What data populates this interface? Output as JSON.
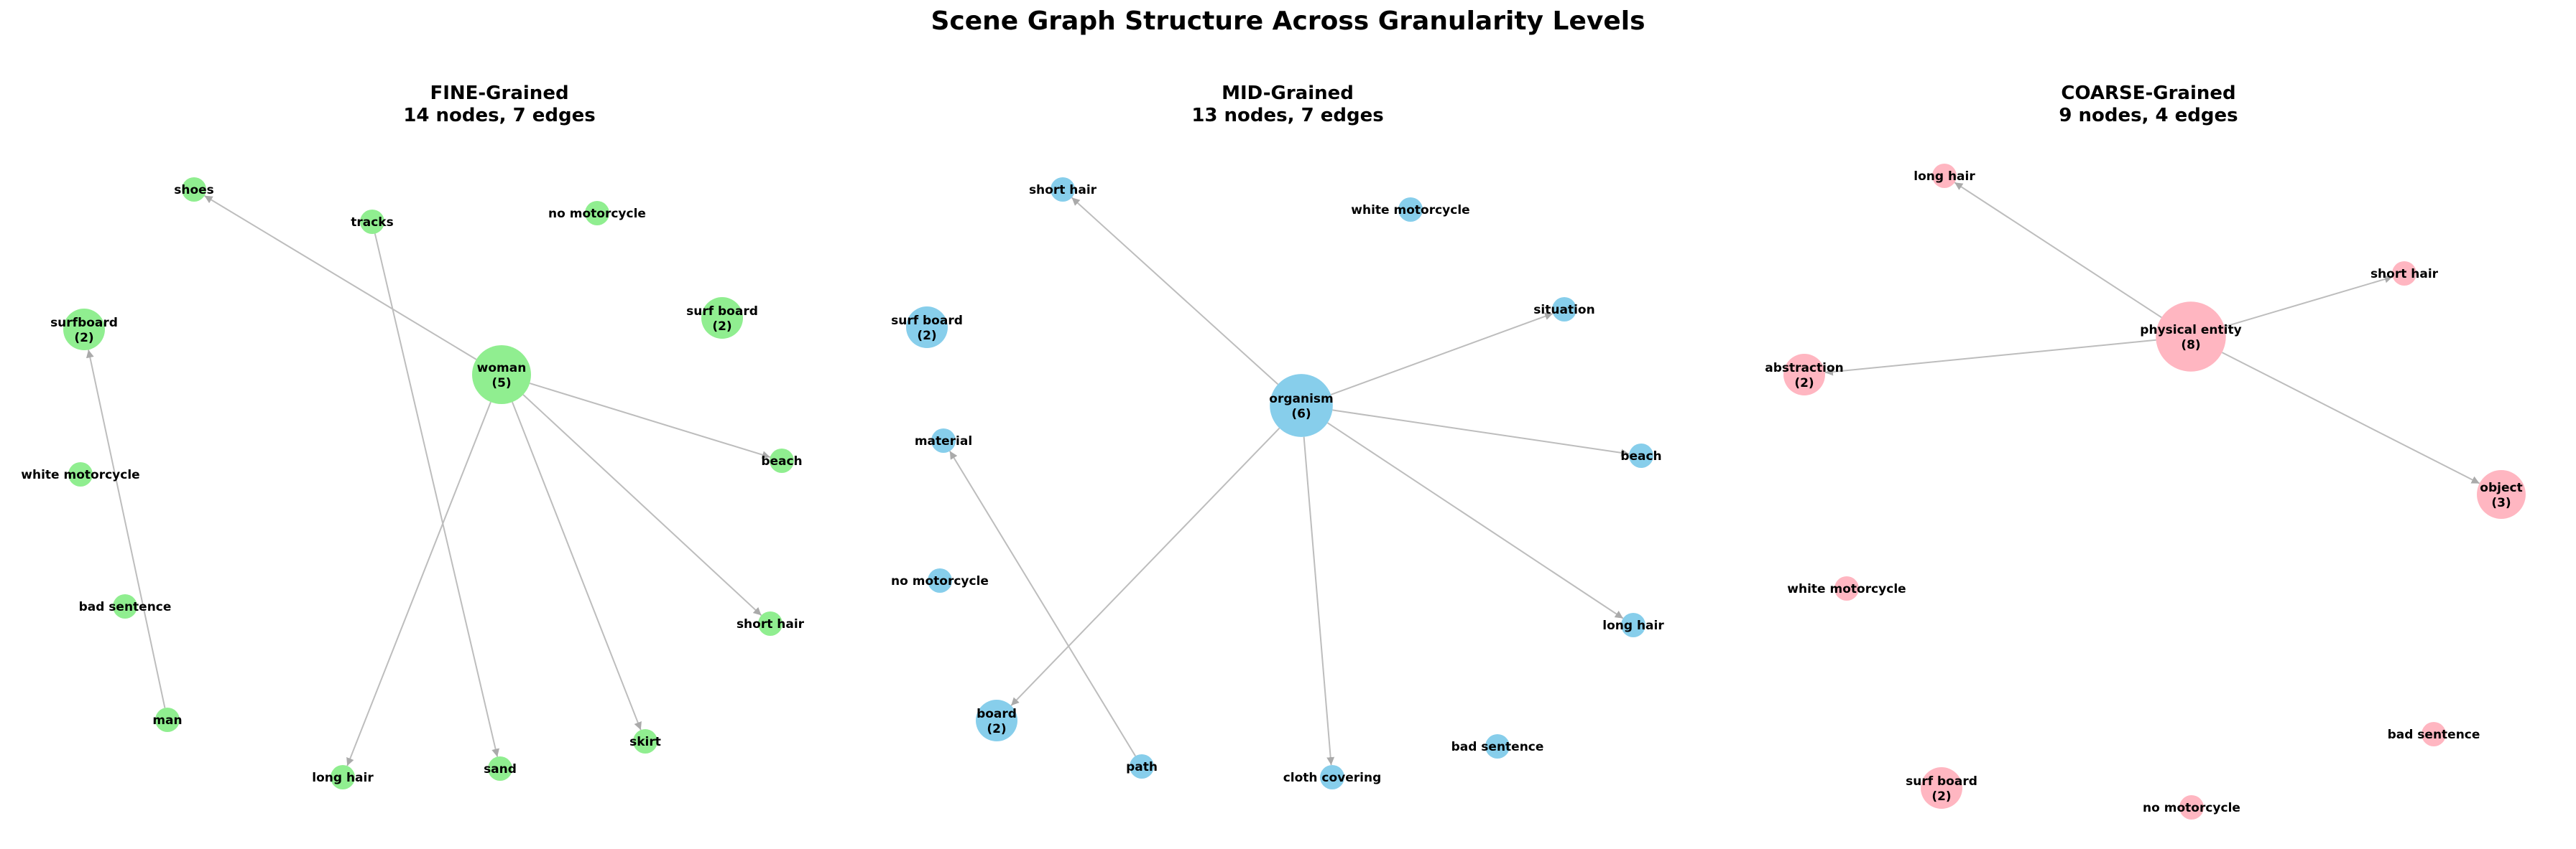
{
  "title": "Scene Graph Structure Across Granularity Levels",
  "panels": [
    {
      "title_line1": "FINE-Grained",
      "title_line2": "14 nodes, 7 edges",
      "color": "#90ee90",
      "nodes": [
        {
          "id": "shoes",
          "label": "shoes",
          "count": 1
        },
        {
          "id": "tracks",
          "label": "tracks",
          "count": 1
        },
        {
          "id": "no_motorcycle",
          "label": "no motorcycle",
          "count": 1
        },
        {
          "id": "surfboard",
          "label": "surfboard",
          "count": 2
        },
        {
          "id": "surf_board",
          "label": "surf board",
          "count": 2
        },
        {
          "id": "woman",
          "label": "woman",
          "count": 5
        },
        {
          "id": "beach",
          "label": "beach",
          "count": 1
        },
        {
          "id": "white_motorcycle",
          "label": "white motorcycle",
          "count": 1
        },
        {
          "id": "bad_sentence",
          "label": "bad sentence",
          "count": 1
        },
        {
          "id": "short_hair",
          "label": "short hair",
          "count": 1
        },
        {
          "id": "man",
          "label": "man",
          "count": 1
        },
        {
          "id": "skirt",
          "label": "skirt",
          "count": 1
        },
        {
          "id": "sand",
          "label": "sand",
          "count": 1
        },
        {
          "id": "long_hair",
          "label": "long hair",
          "count": 1
        }
      ],
      "edges": [
        {
          "from": "woman",
          "to": "shoes"
        },
        {
          "from": "woman",
          "to": "beach"
        },
        {
          "from": "woman",
          "to": "short_hair"
        },
        {
          "from": "woman",
          "to": "skirt"
        },
        {
          "from": "woman",
          "to": "long_hair"
        },
        {
          "from": "tracks",
          "to": "sand"
        },
        {
          "from": "man",
          "to": "surfboard"
        }
      ]
    },
    {
      "title_line1": "MID-Grained",
      "title_line2": "13 nodes, 7 edges",
      "color": "#87ceeb",
      "nodes": [
        {
          "id": "short_hair",
          "label": "short hair",
          "count": 1
        },
        {
          "id": "white_motorcycle",
          "label": "white motorcycle",
          "count": 1
        },
        {
          "id": "surf_board",
          "label": "surf board",
          "count": 2
        },
        {
          "id": "situation",
          "label": "situation",
          "count": 1
        },
        {
          "id": "organism",
          "label": "organism",
          "count": 6
        },
        {
          "id": "material",
          "label": "material",
          "count": 1
        },
        {
          "id": "beach",
          "label": "beach",
          "count": 1
        },
        {
          "id": "no_motorcycle",
          "label": "no motorcycle",
          "count": 1
        },
        {
          "id": "long_hair",
          "label": "long hair",
          "count": 1
        },
        {
          "id": "board",
          "label": "board",
          "count": 2
        },
        {
          "id": "bad_sentence",
          "label": "bad sentence",
          "count": 1
        },
        {
          "id": "path",
          "label": "path",
          "count": 1
        },
        {
          "id": "cloth_covering",
          "label": "cloth covering",
          "count": 1
        }
      ],
      "edges": [
        {
          "from": "organism",
          "to": "short_hair"
        },
        {
          "from": "organism",
          "to": "situation"
        },
        {
          "from": "organism",
          "to": "beach"
        },
        {
          "from": "organism",
          "to": "long_hair"
        },
        {
          "from": "organism",
          "to": "cloth_covering"
        },
        {
          "from": "organism",
          "to": "board"
        },
        {
          "from": "path",
          "to": "material"
        }
      ]
    },
    {
      "title_line1": "COARSE-Grained",
      "title_line2": "9 nodes, 4 edges",
      "color": "#ffb6c1",
      "nodes": [
        {
          "id": "long_hair",
          "label": "long hair",
          "count": 1
        },
        {
          "id": "short_hair",
          "label": "short hair",
          "count": 1
        },
        {
          "id": "physical_entity",
          "label": "physical entity",
          "count": 8
        },
        {
          "id": "abstraction",
          "label": "abstraction",
          "count": 2
        },
        {
          "id": "object",
          "label": "object",
          "count": 3
        },
        {
          "id": "white_motorcycle",
          "label": "white motorcycle",
          "count": 1
        },
        {
          "id": "bad_sentence",
          "label": "bad sentence",
          "count": 1
        },
        {
          "id": "surf_board",
          "label": "surf board",
          "count": 2
        },
        {
          "id": "no_motorcycle",
          "label": "no motorcycle",
          "count": 1
        }
      ],
      "edges": [
        {
          "from": "physical_entity",
          "to": "long_hair"
        },
        {
          "from": "physical_entity",
          "to": "short_hair"
        },
        {
          "from": "physical_entity",
          "to": "abstraction"
        },
        {
          "from": "physical_entity",
          "to": "object"
        }
      ]
    }
  ]
}
